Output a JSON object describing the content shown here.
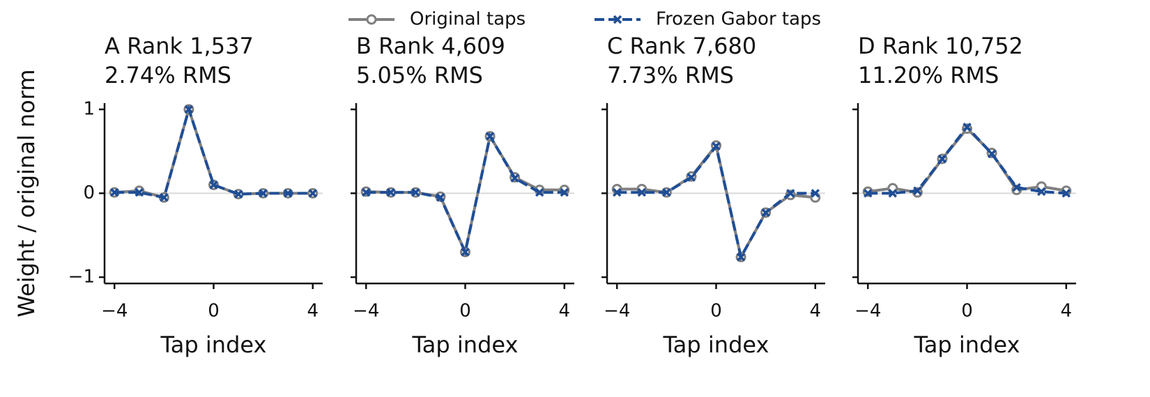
{
  "chart_data": [
    {
      "type": "line",
      "title": "A  Rank 1,537",
      "subtitle": "2.74% RMS",
      "xlabel": "Tap index",
      "ylabel": "Weight / original norm",
      "x": [
        -4,
        -3,
        -2,
        -1,
        0,
        1,
        2,
        3,
        4
      ],
      "series": [
        {
          "name": "Original taps",
          "color": "#808080",
          "marker": "o",
          "values": [
            0.01,
            0.03,
            -0.05,
            1.0,
            0.1,
            -0.01,
            0,
            0,
            0
          ]
        },
        {
          "name": "Frozen Gabor taps",
          "color": "#1f4e96",
          "marker": "x",
          "dashed": true,
          "values": [
            0.01,
            0.01,
            -0.05,
            1.0,
            0.1,
            -0.01,
            0,
            0,
            0
          ]
        }
      ],
      "xlim": [
        -4.4,
        4.4
      ],
      "xticks": [
        {
          "value": -4,
          "label": "−4"
        },
        0,
        4
      ],
      "ylim": [
        -1.075,
        1.075
      ],
      "yticks": [
        {
          "value": -1,
          "label": "−1"
        },
        0,
        1
      ],
      "zero_line": true
    },
    {
      "type": "line",
      "title": "B  Rank 4,609",
      "subtitle": "5.05% RMS",
      "xlabel": "Tap index",
      "x": [
        -4,
        -3,
        -2,
        -1,
        0,
        1,
        2,
        3,
        4
      ],
      "series": [
        {
          "name": "Original taps",
          "color": "#808080",
          "marker": "o",
          "values": [
            0.02,
            0.01,
            0.01,
            -0.04,
            -0.7,
            0.68,
            0.19,
            0.04,
            0.04
          ]
        },
        {
          "name": "Frozen Gabor taps",
          "color": "#1f4e96",
          "marker": "x",
          "dashed": true,
          "values": [
            0.01,
            0.01,
            0.01,
            -0.05,
            -0.7,
            0.68,
            0.18,
            0.01,
            0.01
          ]
        }
      ],
      "xlim": [
        -4.4,
        4.4
      ],
      "xticks": [
        {
          "value": -4,
          "label": "−4"
        },
        0,
        4
      ],
      "ylim": [
        -1.075,
        1.075
      ],
      "yticks": [
        -1,
        0,
        1
      ],
      "zero_line": true
    },
    {
      "type": "line",
      "title": "C  Rank 7,680",
      "subtitle": "7.73% RMS",
      "xlabel": "Tap index",
      "x": [
        -4,
        -3,
        -2,
        -1,
        0,
        1,
        2,
        3,
        4
      ],
      "series": [
        {
          "name": "Original taps",
          "color": "#808080",
          "marker": "o",
          "values": [
            0.05,
            0.05,
            0.01,
            0.2,
            0.57,
            -0.76,
            -0.23,
            -0.02,
            -0.05
          ]
        },
        {
          "name": "Frozen Gabor taps",
          "color": "#1f4e96",
          "marker": "x",
          "dashed": true,
          "values": [
            0.01,
            0.01,
            0.01,
            0.19,
            0.56,
            -0.76,
            -0.23,
            0,
            0
          ]
        }
      ],
      "xlim": [
        -4.4,
        4.4
      ],
      "xticks": [
        {
          "value": -4,
          "label": "−4"
        },
        0,
        4
      ],
      "ylim": [
        -1.075,
        1.075
      ],
      "yticks": [
        -1,
        0,
        1
      ],
      "zero_line": true
    },
    {
      "type": "line",
      "title": "D  Rank 10,752",
      "subtitle": "11.20% RMS",
      "xlabel": "Tap index",
      "x": [
        -4,
        -3,
        -2,
        -1,
        0,
        1,
        2,
        3,
        4
      ],
      "series": [
        {
          "name": "Original taps",
          "color": "#808080",
          "marker": "o",
          "values": [
            0.02,
            0.06,
            0.01,
            0.41,
            0.77,
            0.48,
            0.04,
            0.08,
            0.03
          ]
        },
        {
          "name": "Frozen Gabor taps",
          "color": "#1f4e96",
          "marker": "x",
          "dashed": true,
          "values": [
            0,
            0,
            0.03,
            0.41,
            0.79,
            0.47,
            0.07,
            0.02,
            0
          ]
        }
      ],
      "xlim": [
        -4.4,
        4.4
      ],
      "xticks": [
        {
          "value": -4,
          "label": "−4"
        },
        0,
        4
      ],
      "ylim": [
        -1.075,
        1.075
      ],
      "yticks": [
        -1,
        0,
        1
      ],
      "zero_line": true
    }
  ]
}
